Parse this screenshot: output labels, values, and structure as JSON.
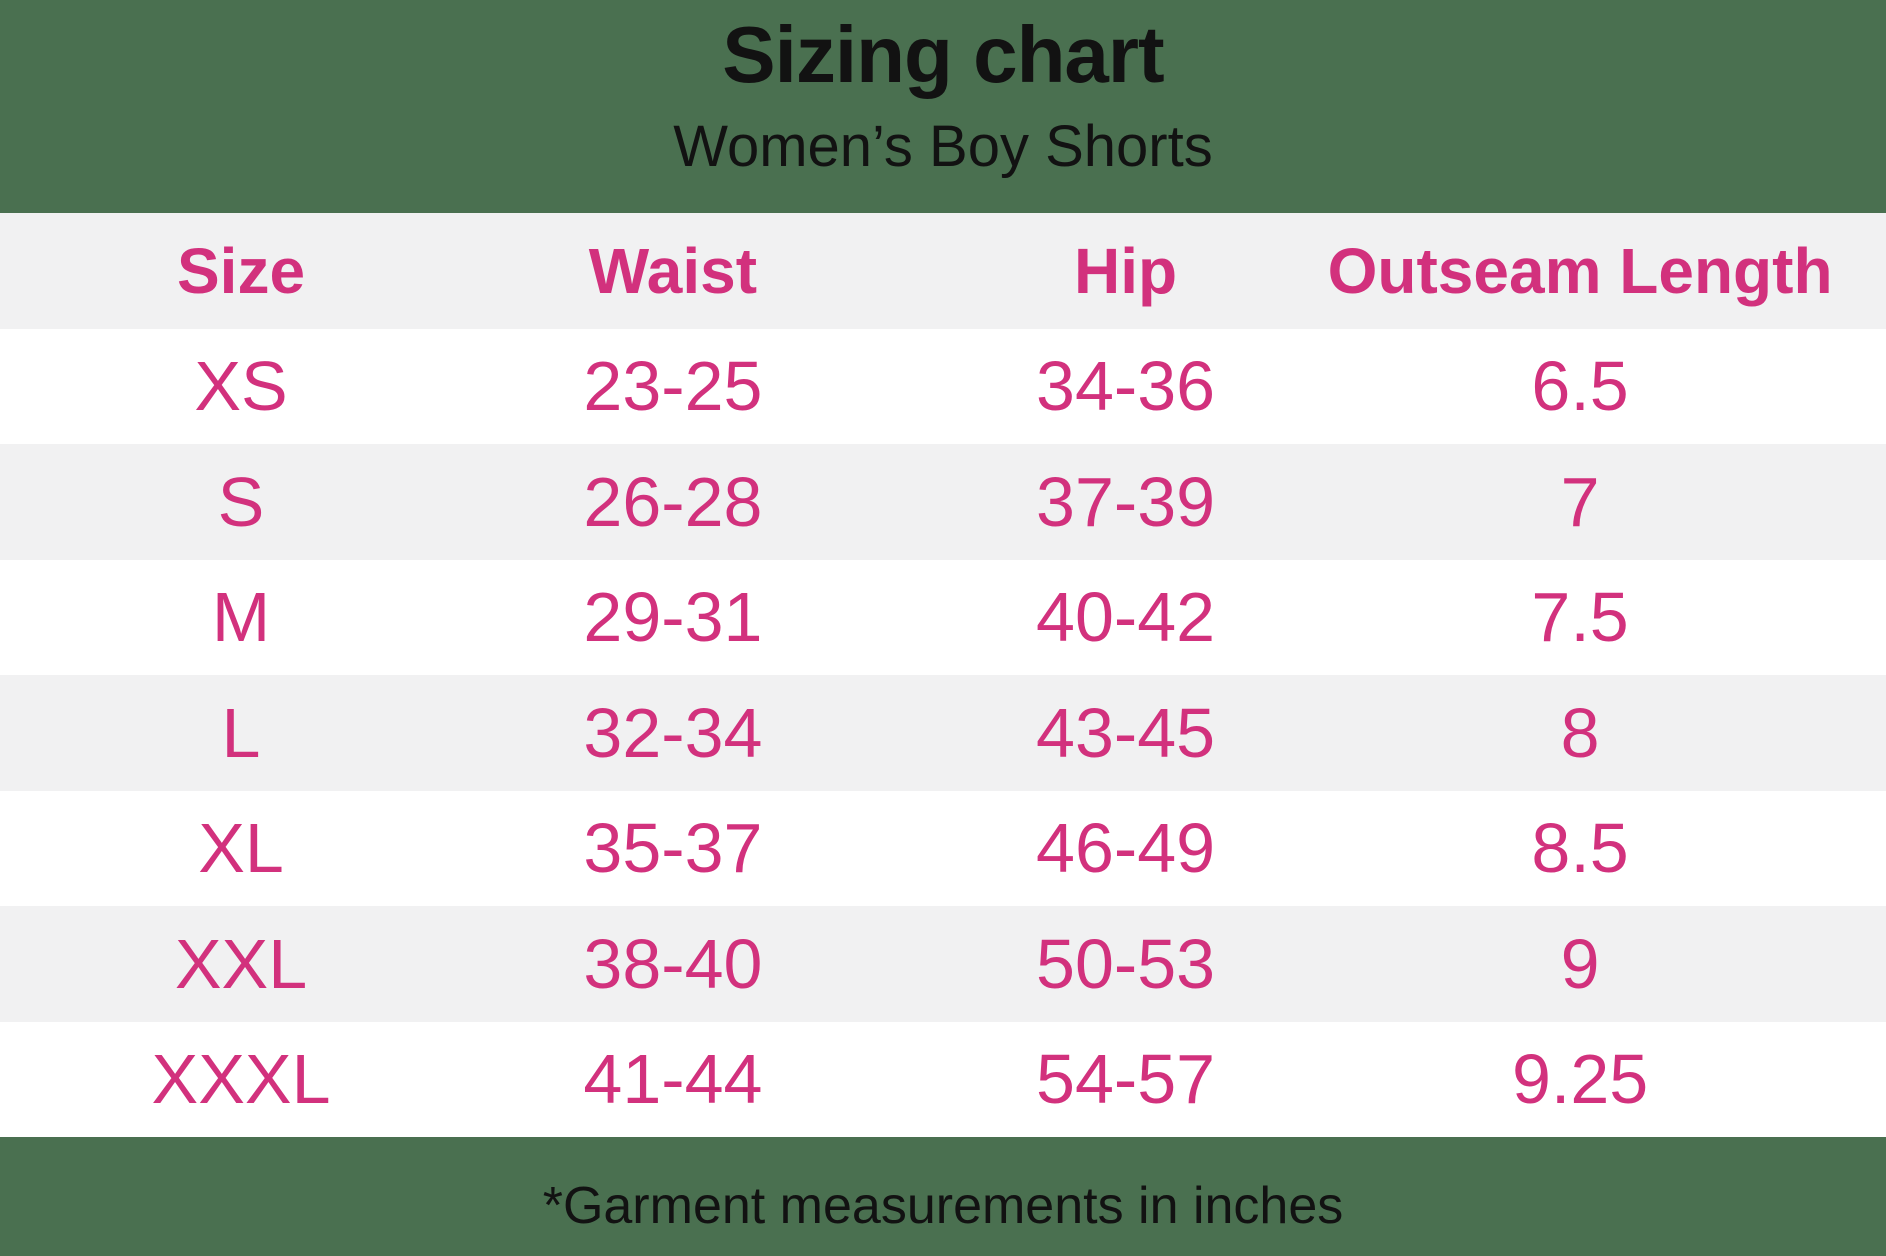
{
  "page": {
    "background_color": "#4a7050",
    "accent_color": "#d2317d",
    "stripe_color": "#f1f1f2",
    "text_color": "#121212"
  },
  "header": {
    "title": "Sizing chart",
    "subtitle": "Women’s Boy Shorts"
  },
  "table": {
    "columns": [
      "Size",
      "Waist",
      "Hip",
      "Outseam Length"
    ],
    "rows": [
      {
        "size": "XS",
        "waist": "23-25",
        "hip": "34-36",
        "outseam": "6.5"
      },
      {
        "size": "S",
        "waist": "26-28",
        "hip": "37-39",
        "outseam": "7"
      },
      {
        "size": "M",
        "waist": "29-31",
        "hip": "40-42",
        "outseam": "7.5"
      },
      {
        "size": "L",
        "waist": "32-34",
        "hip": "43-45",
        "outseam": "8"
      },
      {
        "size": "XL",
        "waist": "35-37",
        "hip": "46-49",
        "outseam": "8.5"
      },
      {
        "size": "XXL",
        "waist": "38-40",
        "hip": "50-53",
        "outseam": "9"
      },
      {
        "size": "XXXL",
        "waist": "41-44",
        "hip": "54-57",
        "outseam": "9.25"
      }
    ]
  },
  "footer": {
    "note": "*Garment measurements in inches"
  },
  "chart_data": {
    "type": "table",
    "title": "Sizing chart",
    "subtitle": "Women’s Boy Shorts",
    "footnote": "*Garment measurements in inches",
    "units": "inches",
    "columns": [
      "Size",
      "Waist",
      "Hip",
      "Outseam Length"
    ],
    "rows": [
      [
        "XS",
        "23-25",
        "34-36",
        6.5
      ],
      [
        "S",
        "26-28",
        "37-39",
        7
      ],
      [
        "M",
        "29-31",
        "40-42",
        7.5
      ],
      [
        "L",
        "32-34",
        "43-45",
        8
      ],
      [
        "XL",
        "35-37",
        "46-49",
        8.5
      ],
      [
        "XXL",
        "38-40",
        "50-53",
        9
      ],
      [
        "XXXL",
        "41-44",
        "54-57",
        9.25
      ]
    ]
  }
}
